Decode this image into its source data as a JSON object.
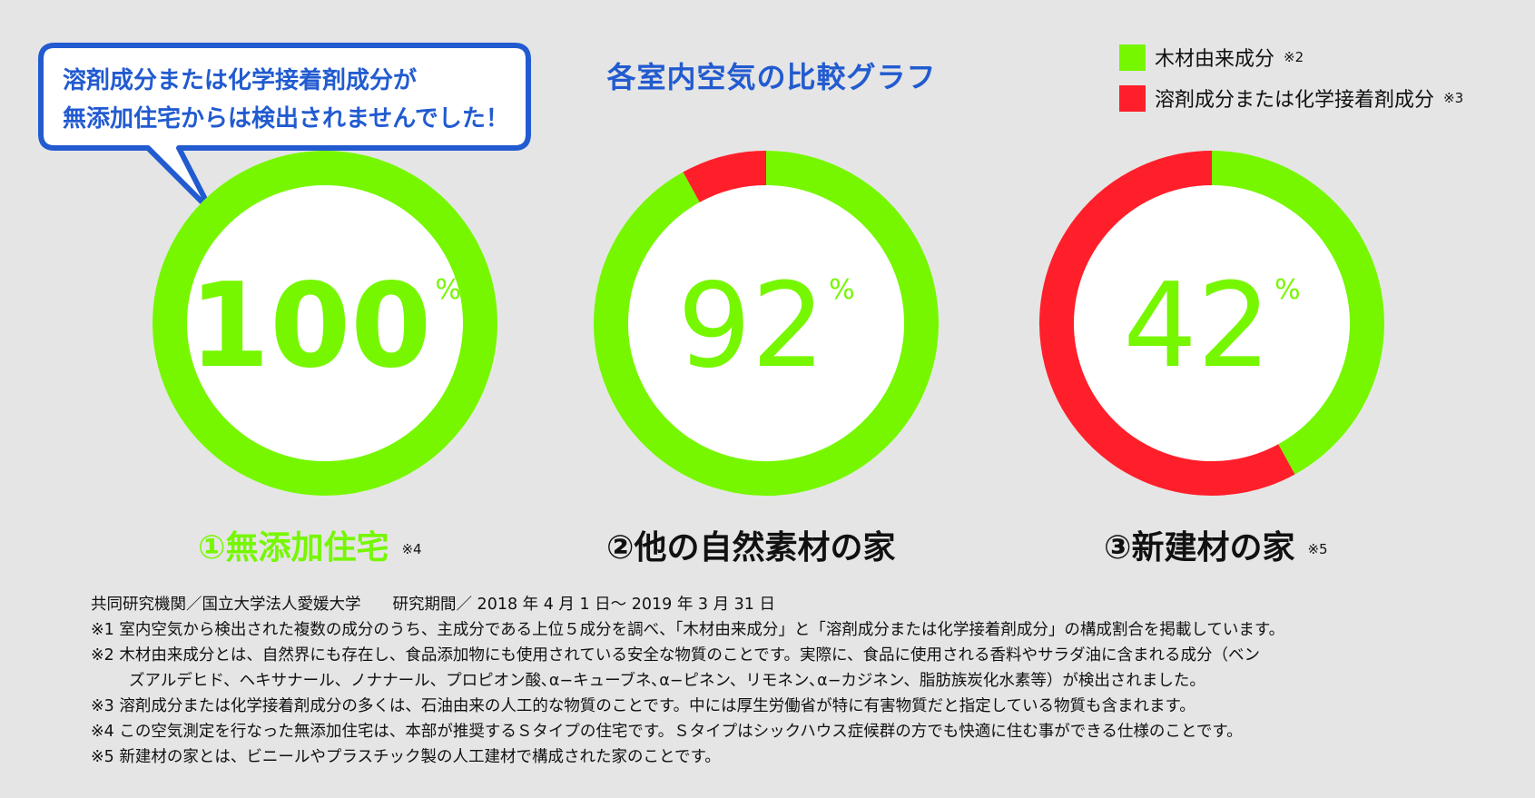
{
  "title": "各室内空気の比較グラフ",
  "bubble": {
    "lines": [
      "溶剤成分または化学接着剤成分が",
      "無添加住宅からは検出されませんでした！"
    ]
  },
  "legend": [
    {
      "label": "木材由来成分",
      "note": "※2",
      "color": "#76f700"
    },
    {
      "label": "溶剤成分または化学接着剤成分",
      "note": "※3",
      "color": "#ff1f2a"
    }
  ],
  "colors": {
    "green": "#76f700",
    "red": "#ff1f2a",
    "blue": "#225bd0",
    "background": "#e5e5e5"
  },
  "chart_data": {
    "type": "pie",
    "title": "各室内空気の比較グラフ",
    "series_names": [
      "木材由来成分",
      "溶剤成分または化学接着剤成分"
    ],
    "charts": [
      {
        "label": "①無添加住宅",
        "note": "※4",
        "wood_pct": 100,
        "solvent_pct": 0,
        "display": "100",
        "unit": "%"
      },
      {
        "label": "②他の自然素材の家",
        "note": "",
        "wood_pct": 92,
        "solvent_pct": 8,
        "display": "92",
        "unit": "%"
      },
      {
        "label": "③新建材の家",
        "note": "※5",
        "wood_pct": 42,
        "solvent_pct": 58,
        "display": "42",
        "unit": "%"
      }
    ]
  },
  "notes": [
    "共同研究機関／国立大学法人愛媛大学　　研究期間／ 2018 年 4 月 1 日～ 2019 年 3 月 31 日",
    "※1  室内空気から検出された複数の成分のうち、主成分である上位５成分を調べ、「木材由来成分」と「溶剤成分または化学接着剤成分」の構成割合を掲載しています。",
    "※2  木材由来成分とは、自然界にも存在し、食品添加物にも使用されている安全な物質のことです。実際に、食品に使用される香料やサラダ油に含まれる成分（ベン",
    "ズアルデヒド、ヘキサナール、ノナナール、プロピオン酸､α−キューブネ､α−ピネン、リモネン､α−カジネン、脂肪族炭化水素等）が検出されました。",
    "※3  溶剤成分または化学接着剤成分の多くは、石油由来の人工的な物質のことです。中には厚生労働省が特に有害物質だと指定している物質も含まれます。",
    "※4  この空気測定を行なった無添加住宅は、本部が推奨するＳタイプの住宅です。Ｓタイプはシックハウス症候群の方でも快適に住む事ができる仕様のことです。",
    "※5  新建材の家とは、ビニールやプラスチック製の人工建材で構成された家のことです。"
  ]
}
